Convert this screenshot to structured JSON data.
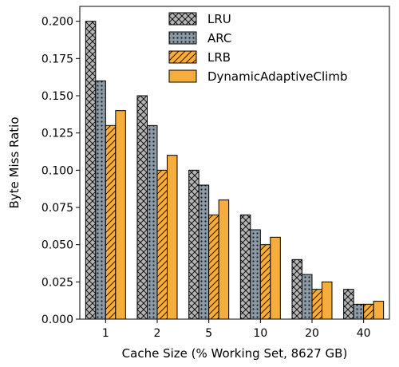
{
  "chart_data": {
    "type": "bar",
    "title": "",
    "xlabel": "Cache Size (% Working Set, 8627 GB)",
    "ylabel": "Byte Miss Ratio",
    "categories": [
      "1",
      "2",
      "5",
      "10",
      "20",
      "40"
    ],
    "ylim": [
      0,
      0.21
    ],
    "yticks": [
      "0.000",
      "0.025",
      "0.050",
      "0.075",
      "0.100",
      "0.125",
      "0.150",
      "0.175",
      "0.200"
    ],
    "grid": false,
    "legend_position": "top-center",
    "series": [
      {
        "name": "LRU",
        "values": [
          0.2,
          0.15,
          0.1,
          0.07,
          0.04,
          0.02
        ],
        "color": "#b4b4b4",
        "hatch": "crosshatch"
      },
      {
        "name": "ARC",
        "values": [
          0.16,
          0.13,
          0.09,
          0.06,
          0.03,
          0.01
        ],
        "color": "#8c9aa6",
        "hatch": "dots"
      },
      {
        "name": "LRB",
        "values": [
          0.13,
          0.1,
          0.07,
          0.05,
          0.02,
          0.01
        ],
        "color": "#f5ad3c",
        "hatch": "diagonal"
      },
      {
        "name": "DynamicAdaptiveClimb",
        "values": [
          0.14,
          0.11,
          0.08,
          0.055,
          0.025,
          0.012
        ],
        "color": "#f5ad3c",
        "hatch": "none"
      }
    ]
  }
}
